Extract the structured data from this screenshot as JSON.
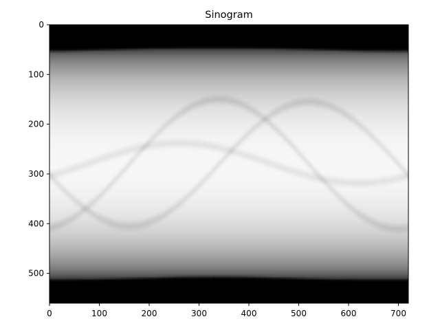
{
  "chart_data": {
    "type": "heatmap",
    "title": "Sinogram",
    "xlabel": "",
    "ylabel": "",
    "colormap": "gray",
    "x_range": [
      0,
      720
    ],
    "y_range": [
      0,
      560
    ],
    "y_inverted": true,
    "x_ticks": [
      0,
      100,
      200,
      300,
      400,
      500,
      600,
      700
    ],
    "y_ticks": [
      0,
      100,
      200,
      300,
      400,
      500
    ],
    "grid": false,
    "support_boundary": {
      "top_row_min": 42,
      "top_row_max": 50,
      "bottom_row_min": 510,
      "bottom_row_max": 518
    },
    "background_profile": {
      "center_row": 280,
      "center_intensity": 0.97,
      "edge_intensity": 0.08
    },
    "sinusoid_traces": [
      {
        "center_row": 280,
        "amplitude": 125,
        "phase_deg": 20,
        "width": 12,
        "darkness": 0.09
      },
      {
        "center_row": 280,
        "amplitude": 130,
        "phase_deg": 200,
        "width": 12,
        "darkness": 0.09
      },
      {
        "center_row": 278,
        "amplitude": 40,
        "phase_deg": 280,
        "width": 12,
        "darkness": 0.08
      }
    ]
  }
}
